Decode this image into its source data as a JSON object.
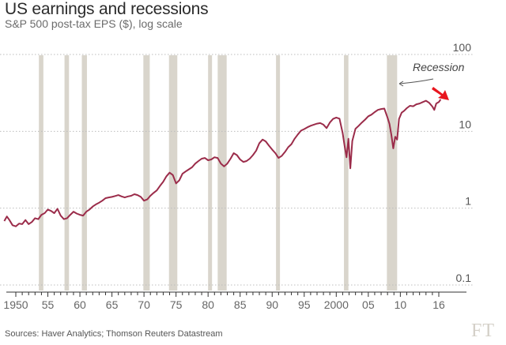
{
  "chart_data": {
    "type": "line",
    "title": "US earnings and recessions",
    "subtitle": "S&P 500 post-tax EPS ($), log scale",
    "source": "Sources: Haver Analytics; Thomson Reuters Datastream",
    "logo": "FT",
    "xlim": [
      1948,
      2017
    ],
    "ylim": [
      0.1,
      100
    ],
    "yscale": "log",
    "yticks": [
      0.1,
      1,
      10,
      100
    ],
    "ytick_labels": [
      "0.1",
      "1",
      "10",
      "100"
    ],
    "xticks": [
      1950,
      1955,
      1960,
      1965,
      1970,
      1975,
      1980,
      1985,
      1990,
      1995,
      2000,
      2005,
      2010,
      2016
    ],
    "xtick_labels": [
      "1950",
      "55",
      "60",
      "65",
      "70",
      "75",
      "80",
      "85",
      "90",
      "95",
      "2000",
      "05",
      "10",
      "16"
    ],
    "annotation": "Recession",
    "colors": {
      "line": "#9b2c4a",
      "recession": "#d9d5cc",
      "grid": "#bdbdbd",
      "arrow": "#e8161e"
    },
    "recessions": [
      [
        1953.6,
        1954.3
      ],
      [
        1957.6,
        1958.3
      ],
      [
        1960.3,
        1961.1
      ],
      [
        1969.9,
        1970.9
      ],
      [
        1973.9,
        1975.2
      ],
      [
        1980.0,
        1980.6
      ],
      [
        1981.5,
        1982.9
      ],
      [
        1990.6,
        1991.2
      ],
      [
        2001.2,
        2001.9
      ],
      [
        2007.9,
        2009.5
      ]
    ],
    "series": [
      {
        "name": "S&P 500 post-tax EPS",
        "x": [
          1948.2,
          1948.6,
          1949.0,
          1949.5,
          1950.0,
          1950.5,
          1951.0,
          1951.5,
          1952.0,
          1952.5,
          1953.0,
          1953.5,
          1954.0,
          1954.5,
          1955.0,
          1955.5,
          1956.0,
          1956.5,
          1957.0,
          1957.5,
          1958.0,
          1958.5,
          1959.0,
          1959.5,
          1960.0,
          1960.5,
          1961.0,
          1961.5,
          1962.0,
          1962.5,
          1963.0,
          1963.5,
          1964.0,
          1964.5,
          1965.0,
          1965.5,
          1966.0,
          1966.5,
          1967.0,
          1967.5,
          1968.0,
          1968.5,
          1969.0,
          1969.5,
          1970.0,
          1970.5,
          1971.0,
          1971.5,
          1972.0,
          1972.5,
          1973.0,
          1973.5,
          1974.0,
          1974.5,
          1975.0,
          1975.5,
          1976.0,
          1976.5,
          1977.0,
          1977.5,
          1978.0,
          1978.5,
          1979.0,
          1979.5,
          1980.0,
          1980.5,
          1981.0,
          1981.5,
          1982.0,
          1982.5,
          1983.0,
          1983.5,
          1984.0,
          1984.5,
          1985.0,
          1985.5,
          1986.0,
          1986.5,
          1987.0,
          1987.5,
          1988.0,
          1988.5,
          1989.0,
          1989.5,
          1990.0,
          1990.5,
          1991.0,
          1991.5,
          1992.0,
          1992.5,
          1993.0,
          1993.5,
          1994.0,
          1994.5,
          1995.0,
          1995.5,
          1996.0,
          1996.5,
          1997.0,
          1997.5,
          1998.0,
          1998.5,
          1999.0,
          1999.5,
          2000.0,
          2000.5,
          2001.0,
          2001.3,
          2001.6,
          2001.9,
          2002.2,
          2002.5,
          2003.0,
          2003.5,
          2004.0,
          2004.5,
          2005.0,
          2005.5,
          2006.0,
          2006.5,
          2007.0,
          2007.5,
          2008.0,
          2008.3,
          2008.6,
          2008.9,
          2009.2,
          2009.5,
          2009.8,
          2010.2,
          2010.6,
          2011.0,
          2011.5,
          2012.0,
          2012.5,
          2013.0,
          2013.5,
          2014.0,
          2014.5,
          2015.0,
          2015.3,
          2015.6,
          2016.0,
          2016.3
        ],
        "values": [
          0.68,
          0.78,
          0.7,
          0.6,
          0.58,
          0.63,
          0.62,
          0.7,
          0.62,
          0.66,
          0.74,
          0.72,
          0.82,
          0.86,
          0.96,
          0.92,
          0.86,
          0.98,
          0.8,
          0.72,
          0.74,
          0.82,
          0.9,
          0.85,
          0.82,
          0.8,
          0.9,
          0.96,
          1.05,
          1.12,
          1.18,
          1.25,
          1.35,
          1.38,
          1.4,
          1.44,
          1.48,
          1.42,
          1.38,
          1.42,
          1.45,
          1.52,
          1.48,
          1.4,
          1.25,
          1.3,
          1.45,
          1.58,
          1.7,
          1.95,
          2.2,
          2.6,
          2.9,
          2.7,
          2.1,
          2.3,
          2.8,
          3.0,
          3.2,
          3.4,
          3.8,
          4.1,
          4.4,
          4.5,
          4.2,
          4.3,
          4.6,
          4.5,
          3.8,
          3.5,
          3.8,
          4.4,
          5.2,
          4.9,
          4.3,
          4.0,
          4.1,
          4.4,
          4.9,
          5.6,
          7.0,
          7.8,
          7.4,
          6.5,
          5.8,
          5.2,
          4.5,
          4.8,
          5.4,
          6.2,
          6.8,
          8.0,
          9.1,
          10.2,
          10.7,
          11.3,
          11.8,
          12.2,
          12.6,
          12.8,
          12.2,
          11.0,
          13.0,
          14.5,
          15.1,
          14.6,
          9.5,
          6.5,
          4.6,
          8.0,
          3.3,
          7.5,
          10.8,
          11.8,
          13.0,
          14.2,
          15.7,
          16.5,
          17.8,
          19.0,
          19.5,
          19.8,
          15.0,
          12.5,
          9.0,
          6.0,
          8.5,
          7.8,
          14.5,
          17.5,
          18.5,
          20.0,
          21.5,
          21.2,
          22.5,
          23.0,
          24.0,
          25.0,
          23.5,
          21.0,
          19.0,
          23.0,
          24.0,
          26.0
        ]
      }
    ]
  }
}
